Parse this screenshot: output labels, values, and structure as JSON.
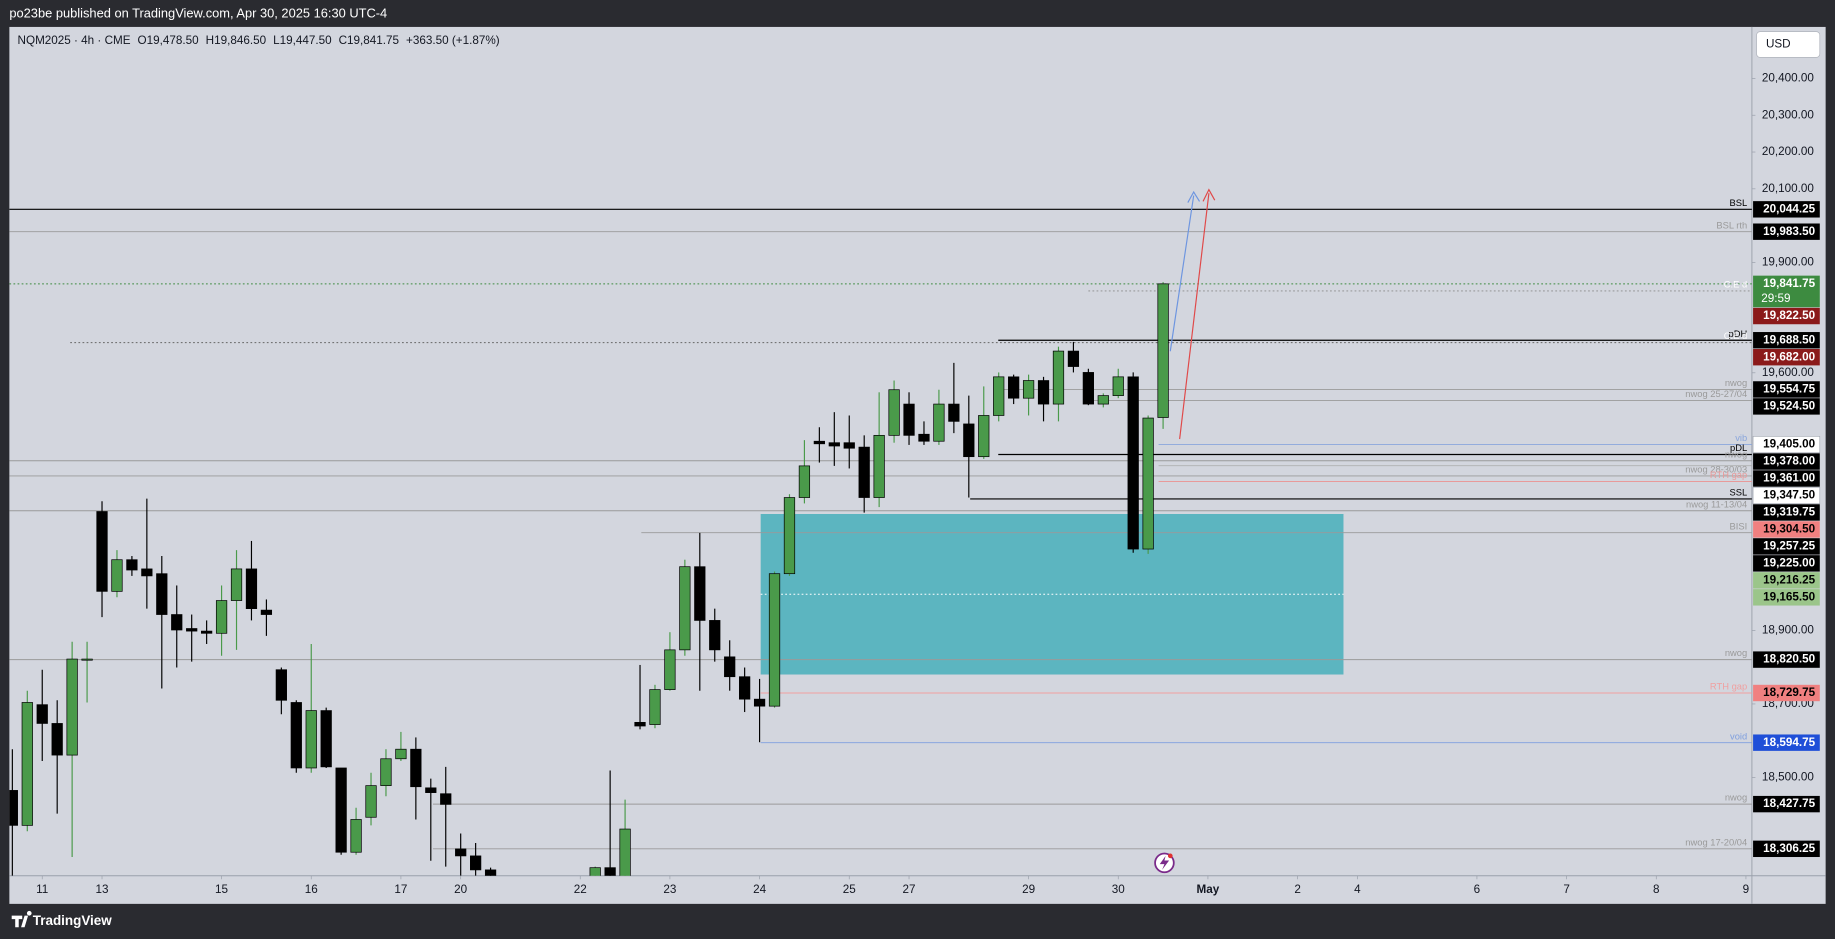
{
  "header": {
    "publisher": "po23be published on TradingView.com, Apr 30, 2025 16:30 UTC-4",
    "symbol": "NQM2025 · 4h · CME",
    "ohlc": [
      "O19,478.50",
      "H19,846.50",
      "L19,447.50",
      "C19,841.75"
    ],
    "change": "+363.50 (+1.87%)",
    "currency": "USD"
  },
  "footer": {
    "brand": "TradingView"
  },
  "chart_data": {
    "type": "candlestick",
    "up_color": "#4a9a4a",
    "down_color": "#000000",
    "x": [
      0,
      1,
      2,
      3,
      4,
      5,
      6,
      7,
      8,
      9,
      10,
      11,
      12,
      13,
      14,
      15,
      16,
      17,
      18,
      19,
      20,
      21,
      22,
      23,
      24,
      25,
      26,
      27,
      28,
      29,
      30,
      31,
      32,
      39,
      40,
      41,
      42,
      43,
      44,
      45,
      46,
      47,
      48,
      49,
      50,
      51,
      52,
      53,
      54,
      55,
      56,
      57,
      58,
      59,
      60,
      61,
      62,
      63,
      64,
      65,
      66,
      67,
      68,
      69,
      70,
      71,
      72,
      73,
      74,
      75,
      76,
      77
    ],
    "open": [
      18465,
      18370,
      18698,
      18647,
      18561,
      18822,
      19223,
      19006,
      19092,
      19067,
      19054,
      18943,
      18905,
      18898,
      18892,
      18981,
      19067,
      18955,
      18793,
      18704,
      18526,
      18682,
      18526,
      18297,
      18392,
      18478,
      18551,
      18577,
      18472,
      18456,
      18306,
      18287,
      18249,
      18200,
      18255,
      18220,
      18650,
      18644,
      18739,
      18847,
      19073,
      18927,
      18828,
      18774,
      18713,
      18694,
      19054,
      19261,
      19414,
      19410,
      19410,
      19398,
      19261,
      19430,
      19515,
      19433,
      19414,
      19515,
      19461,
      19372,
      19484,
      19589,
      19531,
      19579,
      19515,
      19659,
      19601,
      19515,
      19538,
      19589,
      19121,
      19478.5
    ],
    "high": [
      18577,
      18736,
      18793,
      18710,
      18869,
      18869,
      19251,
      19118,
      19102,
      19258,
      19102,
      19022,
      18943,
      18927,
      19022,
      19118,
      19143,
      18984,
      18799,
      18710,
      18863,
      18690,
      18526,
      18418,
      18513,
      18577,
      18624,
      18609,
      18497,
      18529,
      18348,
      18322,
      18255,
      18258,
      18519,
      18440,
      18806,
      18752,
      18895,
      19092,
      19165,
      18959,
      18873,
      18799,
      18768,
      19060,
      19270,
      19417,
      19452,
      19493,
      19484,
      19430,
      19547,
      19579,
      19547,
      19468,
      19554,
      19627,
      19538,
      19563,
      19601,
      19595,
      19595,
      19589,
      19671,
      19684,
      19611,
      19544,
      19611,
      19601,
      19484,
      19846.5
    ],
    "low": [
      18233,
      18354,
      18545,
      18402,
      18284,
      18704,
      18936,
      18990,
      19048,
      18959,
      18742,
      18799,
      18815,
      18863,
      18831,
      18847,
      18927,
      18885,
      18672,
      18513,
      18513,
      18526,
      18290,
      18290,
      18370,
      18449,
      18545,
      18386,
      18274,
      18258,
      18233,
      18233,
      18200,
      18180,
      18150,
      18200,
      18631,
      18634,
      18736,
      18831,
      18736,
      18815,
      18736,
      18678,
      18596,
      18690,
      19048,
      19245,
      19356,
      19347,
      19340,
      19220,
      19235,
      19410,
      19404,
      19404,
      19404,
      19436,
      19261,
      19366,
      19468,
      19515,
      19484,
      19468,
      19468,
      19601,
      19512,
      19506,
      19531,
      19111,
      19108,
      19447.5
    ],
    "close": [
      18370,
      18704,
      18647,
      18561,
      18822,
      18822,
      19006,
      19092,
      19064,
      19048,
      18943,
      18901,
      18898,
      18892,
      18981,
      19067,
      18959,
      18943,
      18710,
      18526,
      18682,
      18529,
      18297,
      18386,
      18478,
      18551,
      18577,
      18475,
      18459,
      18427,
      18287,
      18249,
      18220,
      18255,
      18200,
      18360,
      18640,
      18739,
      18847,
      19073,
      18927,
      18847,
      18774,
      18713,
      18694,
      19054,
      19261,
      19347,
      19407,
      19401,
      19395,
      19261,
      19430,
      19554,
      19430,
      19414,
      19515,
      19468,
      19372,
      19484,
      19589,
      19531,
      19579,
      19515,
      19659,
      19617,
      19515,
      19538,
      19589,
      19121,
      19477,
      19841.75
    ],
    "xlim": [
      -0.2,
      116.4
    ],
    "ylim": [
      18233,
      20540
    ],
    "xticks": [
      {
        "value": 2,
        "label": "11"
      },
      {
        "value": 6,
        "label": "13"
      },
      {
        "value": 14,
        "label": "15"
      },
      {
        "value": 20,
        "label": "16"
      },
      {
        "value": 26,
        "label": "17"
      },
      {
        "value": 30,
        "label": "20"
      },
      {
        "value": 38,
        "label": "22"
      },
      {
        "value": 44,
        "label": "23"
      },
      {
        "value": 50,
        "label": "24"
      },
      {
        "value": 56,
        "label": "25"
      },
      {
        "value": 60,
        "label": "27"
      },
      {
        "value": 68,
        "label": "29"
      },
      {
        "value": 74,
        "label": "30"
      },
      {
        "value": 80,
        "label": "May"
      },
      {
        "value": 86,
        "label": "2"
      },
      {
        "value": 90,
        "label": "4"
      },
      {
        "value": 98,
        "label": "6"
      },
      {
        "value": 104,
        "label": "7"
      },
      {
        "value": 110,
        "label": "8"
      },
      {
        "value": 116,
        "label": "9"
      }
    ],
    "yticks": [
      {
        "value": 20400,
        "label": "20,400.00"
      },
      {
        "value": 20300,
        "label": "20,300.00"
      },
      {
        "value": 20200,
        "label": "20,200.00"
      },
      {
        "value": 20100,
        "label": "20,100.00"
      },
      {
        "value": 19900,
        "label": "19,900.00"
      },
      {
        "value": 19600,
        "label": "19,600.00"
      },
      {
        "value": 18900,
        "label": "18,900.00"
      },
      {
        "value": 18700,
        "label": "18,700.00"
      },
      {
        "value": 18500,
        "label": "18,500.00"
      }
    ],
    "countdown": "29:59",
    "levels": [
      {
        "price": 20044.25,
        "price_label": "20,044.25",
        "label": "BSL",
        "color": "#000000",
        "tag": "#000000"
      },
      {
        "price": 19983.5,
        "price_label": "19,983.50",
        "label": "BSL rth",
        "color": "#9a9a9a",
        "tag": "#000000"
      },
      {
        "price": 19841.75,
        "price_label": "19,841.75",
        "color": "#3d8b40",
        "style": "dotted",
        "tag": "#3d8b40"
      },
      {
        "price": 19822.5,
        "price_label": "19,822.50",
        "label": "C.E d",
        "color": "#8a8a8a",
        "style": "dotted",
        "tag": "#8b1a1a"
      },
      {
        "price": 19688.5,
        "price_label": "19,688.50",
        "label": "pDH",
        "color": "#000000",
        "tag": "#000000"
      },
      {
        "price": 19682,
        "price_label": "19,682.00",
        "label": "C.E d",
        "color": "#666666",
        "style": "dotted",
        "tag": "#8b1a1a"
      },
      {
        "price": 19554.75,
        "price_label": "19,554.75",
        "label": "nwog",
        "color": "#9a9a9a",
        "tag": "#000000"
      },
      {
        "price": 19524.5,
        "price_label": "19,524.50",
        "label": "nwog 25-27/04",
        "color": "#9a9a9a",
        "tag": "#000000"
      },
      {
        "price": 19405,
        "price_label": "19,405.00",
        "label": "vib",
        "color": "#8aa6dc",
        "tag": "#ffffff"
      },
      {
        "price": 19378,
        "price_label": "19,378.00",
        "label": "pDL",
        "color": "#000000",
        "tag": "#000000"
      },
      {
        "price": 19361,
        "price_label": "19,361.00",
        "label": "nwog",
        "color": "#9a9a9a",
        "tag": "#000000"
      },
      {
        "price": 19347.5,
        "price_label": "19,347.50",
        "color": "#b0b0b0",
        "tag": "#ffffff"
      },
      {
        "price": 19319.75,
        "price_label": "19,319.75",
        "label": "nwog 28-30/03",
        "color": "#9a9a9a",
        "tag": "#000000"
      },
      {
        "price": 19304.5,
        "price_label": "19,304.50",
        "label": "RTH gap",
        "color": "#e89a9a",
        "tag": "#f08080"
      },
      {
        "price": 19257.25,
        "price_label": "19,257.25",
        "label": "SSL",
        "color": "#000000",
        "tag": "#000000"
      },
      {
        "price": 19225,
        "price_label": "19,225.00",
        "label": "nwog 11-13/04",
        "color": "#9a9a9a",
        "tag": "#000000"
      },
      {
        "price": 19216.25,
        "price_label": "19,216.25",
        "color": "#9bc58a",
        "tag": "#9bc58a"
      },
      {
        "price": 19165.5,
        "price_label": "19,165.50",
        "label": "BISI",
        "color": "#9a9a9a",
        "tag": "#9bc58a"
      },
      {
        "price": 18820.5,
        "price_label": "18,820.50",
        "label": "nwog",
        "color": "#9a9a9a",
        "tag": "#000000"
      },
      {
        "price": 18729.75,
        "price_label": "18,729.75",
        "label": "RTH gap",
        "color": "#f0a0a0",
        "tag": "#f08080"
      },
      {
        "price": 18594.75,
        "price_label": "18,594.75",
        "label": "void",
        "color": "#7f9fdf",
        "tag": "#1f4fd8"
      },
      {
        "price": 18427.75,
        "price_label": "18,427.75",
        "label": "nwog",
        "color": "#9a9a9a",
        "tag": "#000000"
      },
      {
        "price": 18306.25,
        "price_label": "18,306.25",
        "label": "nwog 17-20/04",
        "color": "#9a9a9a",
        "tag": "#000000"
      }
    ],
    "zone": {
      "bottom": 18780,
      "color": "#4fb1bd"
    }
  }
}
